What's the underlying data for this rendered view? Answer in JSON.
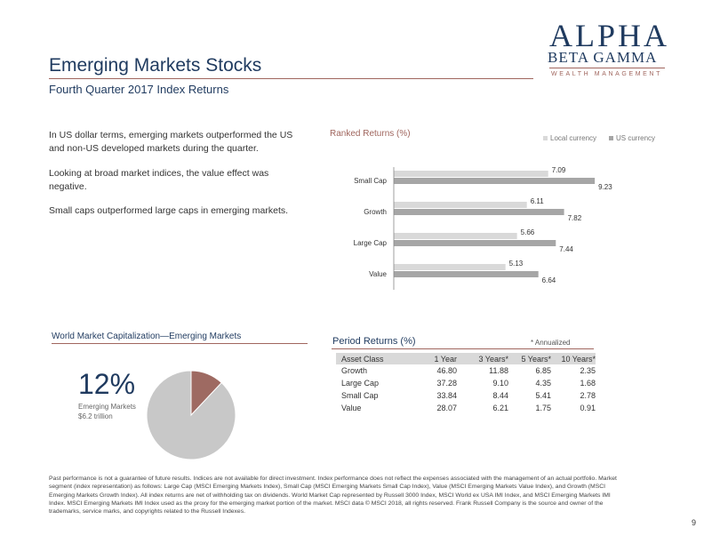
{
  "logo": {
    "line1": "ALPHA",
    "line2": "BETA GAMMA",
    "line3": "WEALTH MANAGEMENT"
  },
  "header": {
    "title": "Emerging Markets Stocks",
    "subtitle": "Fourth Quarter 2017 Index Returns"
  },
  "bullets": [
    "In US dollar terms, emerging markets outperformed the US and non-US developed markets during the quarter.",
    "Looking at broad market indices, the value effect was negative.",
    "Small caps outperformed large caps in emerging markets."
  ],
  "chart_data": [
    {
      "type": "bar",
      "orientation": "horizontal",
      "title": "Ranked Returns (%)",
      "categories": [
        "Small Cap",
        "Growth",
        "Large Cap",
        "Value"
      ],
      "series": [
        {
          "name": "Local currency",
          "color": "#d9d9d9",
          "values": [
            7.09,
            6.11,
            5.66,
            5.13
          ]
        },
        {
          "name": "US currency",
          "color": "#a6a6a6",
          "values": [
            9.23,
            7.82,
            7.44,
            6.64
          ]
        }
      ],
      "value_labels": {
        "local": [
          "7.09",
          "6.11",
          "5.66",
          "5.13"
        ],
        "us": [
          "9.23",
          "7.82",
          "7.44",
          "6.64"
        ]
      },
      "legend_position": "top-right",
      "grid": false
    },
    {
      "type": "pie",
      "title": "World Market Capitalization—Emerging Markets",
      "slices": [
        {
          "label": "Emerging Markets",
          "value": 12,
          "color": "#9e6a62"
        },
        {
          "label": "",
          "value": 88,
          "color": "#c8c8c8"
        }
      ],
      "highlight_pct": "12%",
      "highlight_label": "Emerging Markets $6.2 trillion"
    },
    {
      "type": "table",
      "title": "Period Returns (%)",
      "note": "* Annualized",
      "columns": [
        "Asset Class",
        "1 Year",
        "3 Years*",
        "5 Years*",
        "10 Years*"
      ],
      "rows": [
        [
          "Growth",
          "46.80",
          "11.88",
          "6.85",
          "2.35"
        ],
        [
          "Large Cap",
          "37.28",
          "9.10",
          "4.35",
          "1.68"
        ],
        [
          "Small Cap",
          "33.84",
          "8.44",
          "5.41",
          "2.78"
        ],
        [
          "Value",
          "28.07",
          "6.21",
          "1.75",
          "0.91"
        ]
      ]
    }
  ],
  "footnote": "Past performance is not a guarantee of future results. Indices are not available for direct investment. Index performance does not reflect the expenses associated with the management of an actual portfolio. Market segment (index representation) as follows: Large Cap (MSCI Emerging Markets Index), Small Cap (MSCI Emerging Markets Small Cap Index), Value (MSCI Emerging Markets Value Index), and Growth (MSCI Emerging Markets Growth Index). All index returns are net of withholding tax on dividends. World Market Cap represented by Russell 3000 Index, MSCI World ex USA IMI Index, and MSCI Emerging Markets IMI Index. MSCI Emerging Markets IMI Index used as the proxy for the emerging market portion of the market. MSCI data © MSCI 2018, all rights reserved. Frank Russell Company is the source and owner of the trademarks, service marks, and copyrights related to the Russell Indexes.",
  "page_number": "9",
  "colors": {
    "navy": "#1f3a5f",
    "accent": "#a0665e",
    "local_bar": "#d9d9d9",
    "us_bar": "#a6a6a6"
  }
}
